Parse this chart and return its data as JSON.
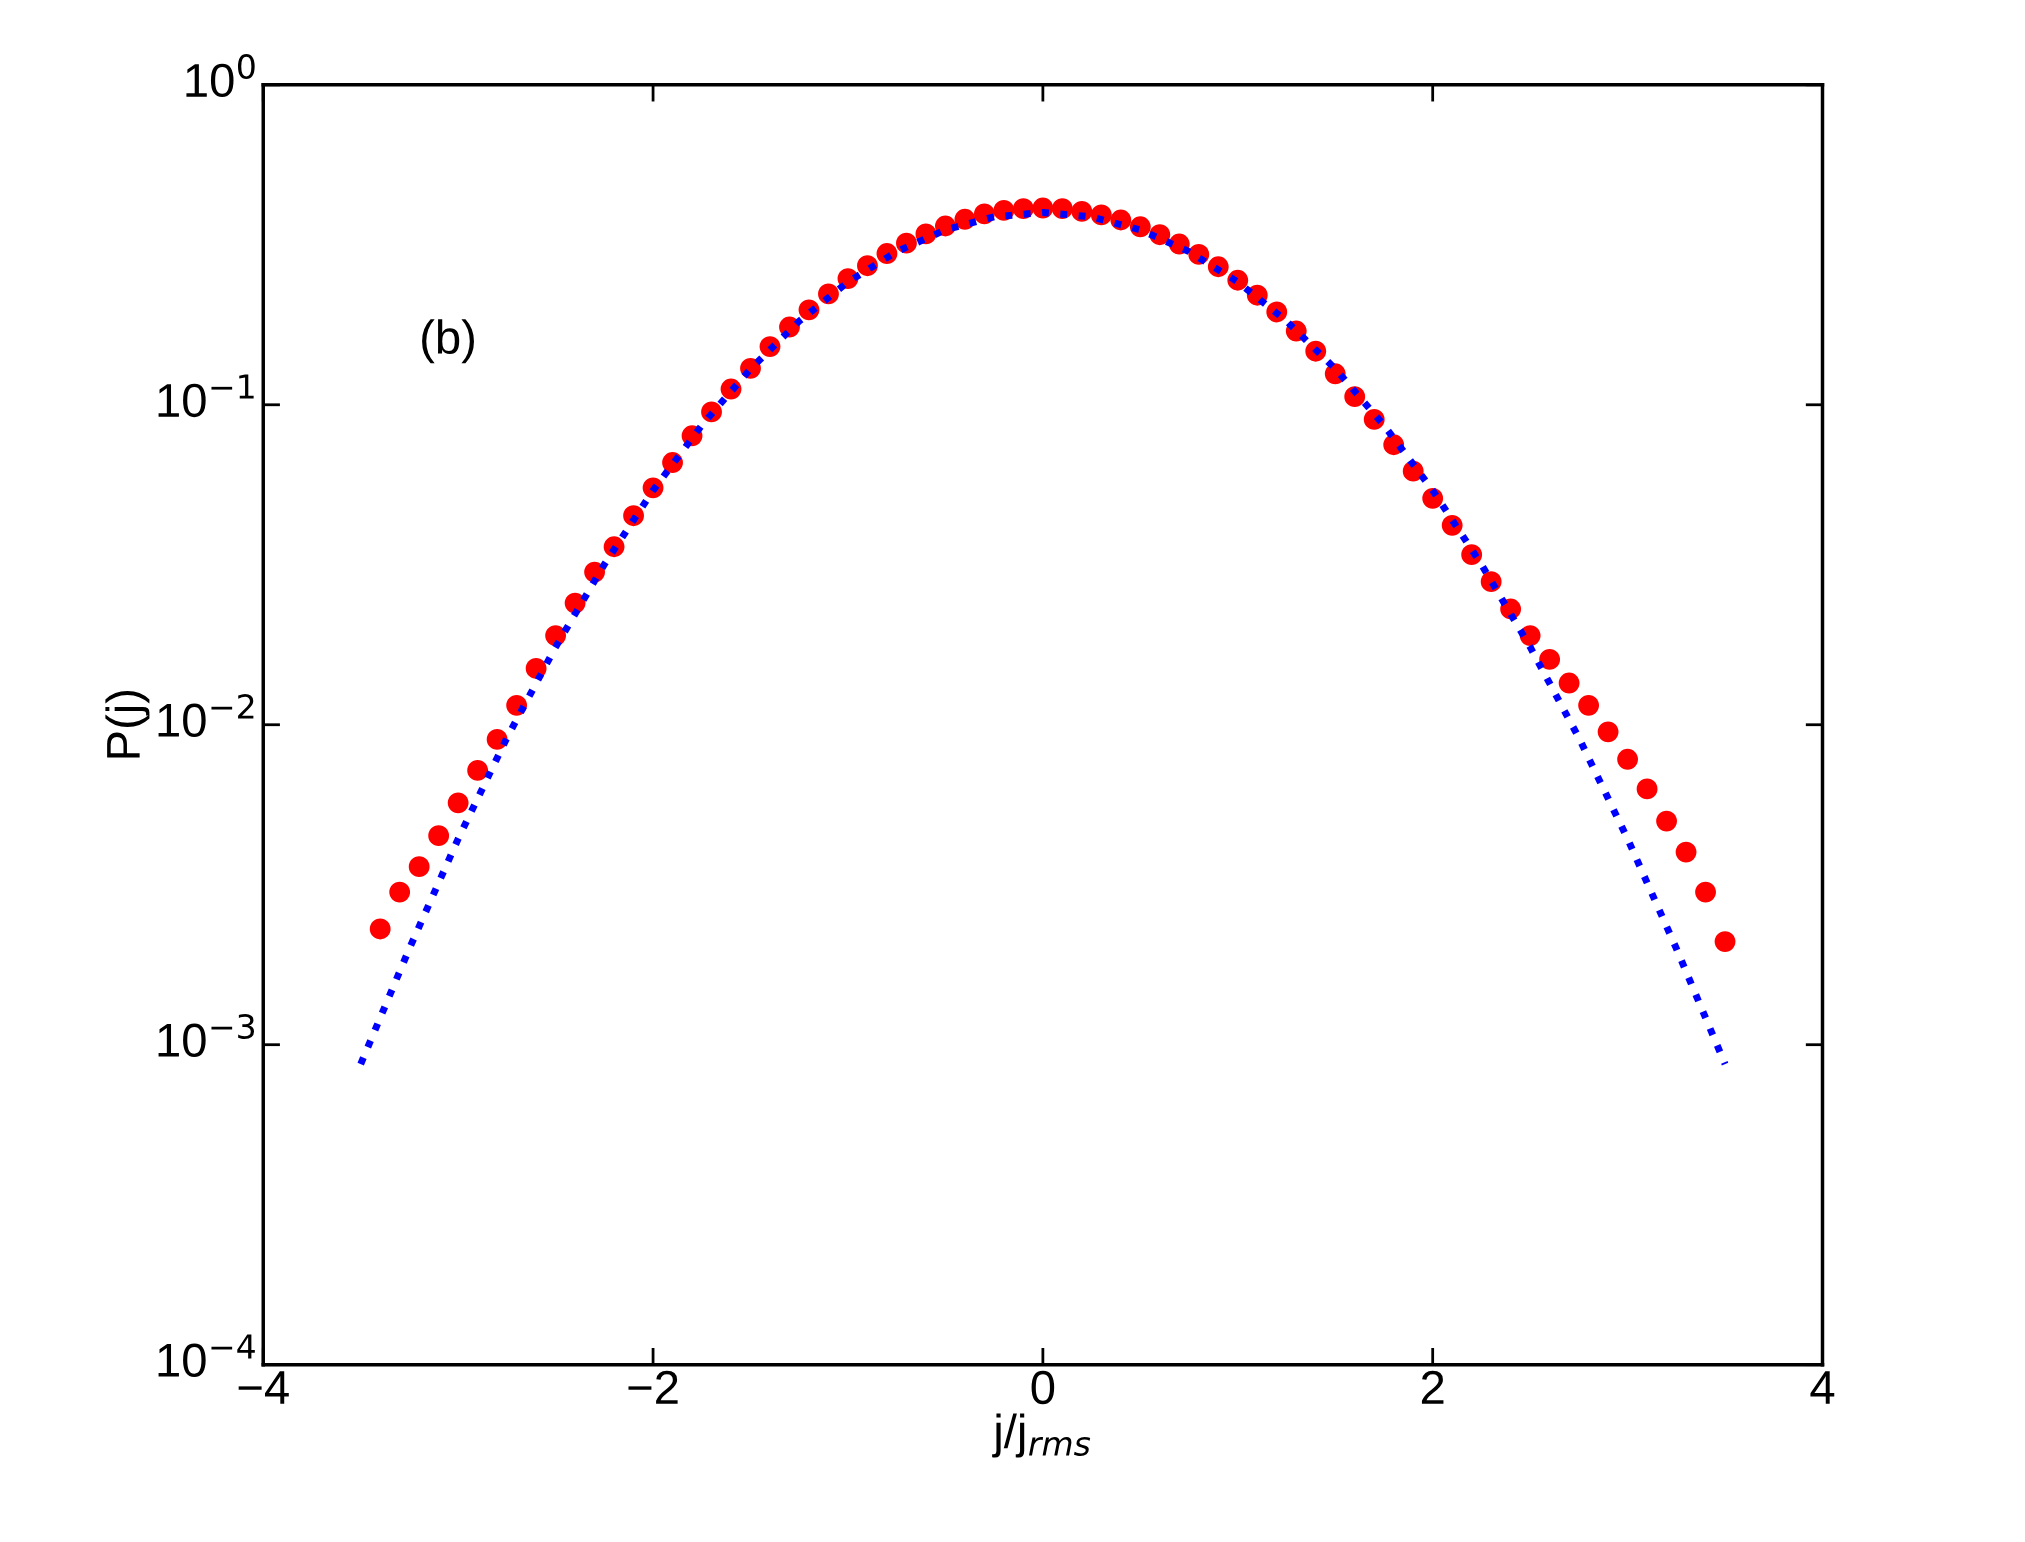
{
  "chart_data": {
    "type": "scatter",
    "xlabel": "j/j$_{rms}$",
    "ylabel": "P(j)",
    "annotations": [
      "(b)"
    ],
    "log": "y",
    "grid": false,
    "legend": false,
    "xlim": [
      -4,
      4
    ],
    "xticks": [
      {
        "value": -4,
        "label": "−4"
      },
      {
        "value": -2,
        "label": "−2"
      },
      0,
      2,
      4
    ],
    "ylim": [
      0.0001,
      1
    ],
    "yticks": [
      {
        "value": 0.0001,
        "label": "10$^{−4}$"
      },
      {
        "value": 0.001,
        "label": "10$^{−3}$"
      },
      {
        "value": 0.01,
        "label": "10$^{−2}$"
      },
      {
        "value": 0.1,
        "label": "10$^{−1}$"
      },
      {
        "value": 1,
        "label": "10$^{0}$"
      }
    ],
    "series": [
      {
        "color": "#ff0000",
        "marker": "circle",
        "x": [
          -3.4,
          -3.3,
          -3.2,
          -3.1,
          -3.0,
          -2.9,
          -2.8,
          -2.7,
          -2.6,
          -2.5,
          -2.4,
          -2.3,
          -2.2,
          -2.1,
          -2.0,
          -1.9,
          -1.8,
          -1.7,
          -1.6,
          -1.5,
          -1.4,
          -1.3,
          -1.2,
          -1.1,
          -1.0,
          -0.9,
          -0.8,
          -0.7,
          -0.6,
          -0.5,
          -0.4,
          -0.3,
          -0.2,
          -0.1,
          0.0,
          0.1,
          0.2,
          0.3,
          0.4,
          0.5,
          0.6,
          0.7,
          0.8,
          0.9,
          1.0,
          1.1,
          1.2,
          1.3,
          1.4,
          1.5,
          1.6,
          1.7,
          1.8,
          1.9,
          2.0,
          2.1,
          2.2,
          2.3,
          2.4,
          2.5,
          2.6,
          2.7,
          2.8,
          2.9,
          3.0,
          3.1,
          3.2,
          3.3,
          3.4,
          3.5
        ],
        "values": [
          0.0023,
          0.003,
          0.0036,
          0.0045,
          0.0057,
          0.0072,
          0.009,
          0.0115,
          0.015,
          0.019,
          0.024,
          0.03,
          0.036,
          0.045,
          0.055,
          0.066,
          0.08,
          0.095,
          0.112,
          0.13,
          0.152,
          0.175,
          0.198,
          0.222,
          0.248,
          0.272,
          0.297,
          0.32,
          0.342,
          0.362,
          0.38,
          0.395,
          0.405,
          0.41,
          0.412,
          0.41,
          0.402,
          0.392,
          0.378,
          0.36,
          0.34,
          0.318,
          0.295,
          0.27,
          0.245,
          0.22,
          0.195,
          0.17,
          0.147,
          0.125,
          0.106,
          0.09,
          0.075,
          0.062,
          0.051,
          0.042,
          0.034,
          0.028,
          0.023,
          0.019,
          0.016,
          0.0135,
          0.0115,
          0.0095,
          0.0078,
          0.0063,
          0.005,
          0.004,
          0.003,
          0.0021
        ]
      },
      {
        "type": "line",
        "color": "#0000ff",
        "line_style": "dotted",
        "x": [
          -3.5,
          -3.25,
          -3.0,
          -2.75,
          -2.5,
          -2.25,
          -2.0,
          -1.75,
          -1.5,
          -1.25,
          -1.0,
          -0.75,
          -0.5,
          -0.25,
          0,
          0.25,
          0.5,
          0.75,
          1.0,
          1.25,
          1.5,
          1.75,
          2.0,
          2.25,
          2.5,
          2.75,
          3.0,
          3.25,
          3.5
        ],
        "values": [
          0.00087,
          0.002,
          0.0044,
          0.0091,
          0.0175,
          0.0317,
          0.054,
          0.0863,
          0.1295,
          0.1826,
          0.242,
          0.3011,
          0.352,
          0.3867,
          0.399,
          0.3867,
          0.352,
          0.3011,
          0.242,
          0.1826,
          0.1295,
          0.0863,
          0.054,
          0.0317,
          0.0175,
          0.0091,
          0.0044,
          0.002,
          0.00087
        ]
      }
    ]
  }
}
